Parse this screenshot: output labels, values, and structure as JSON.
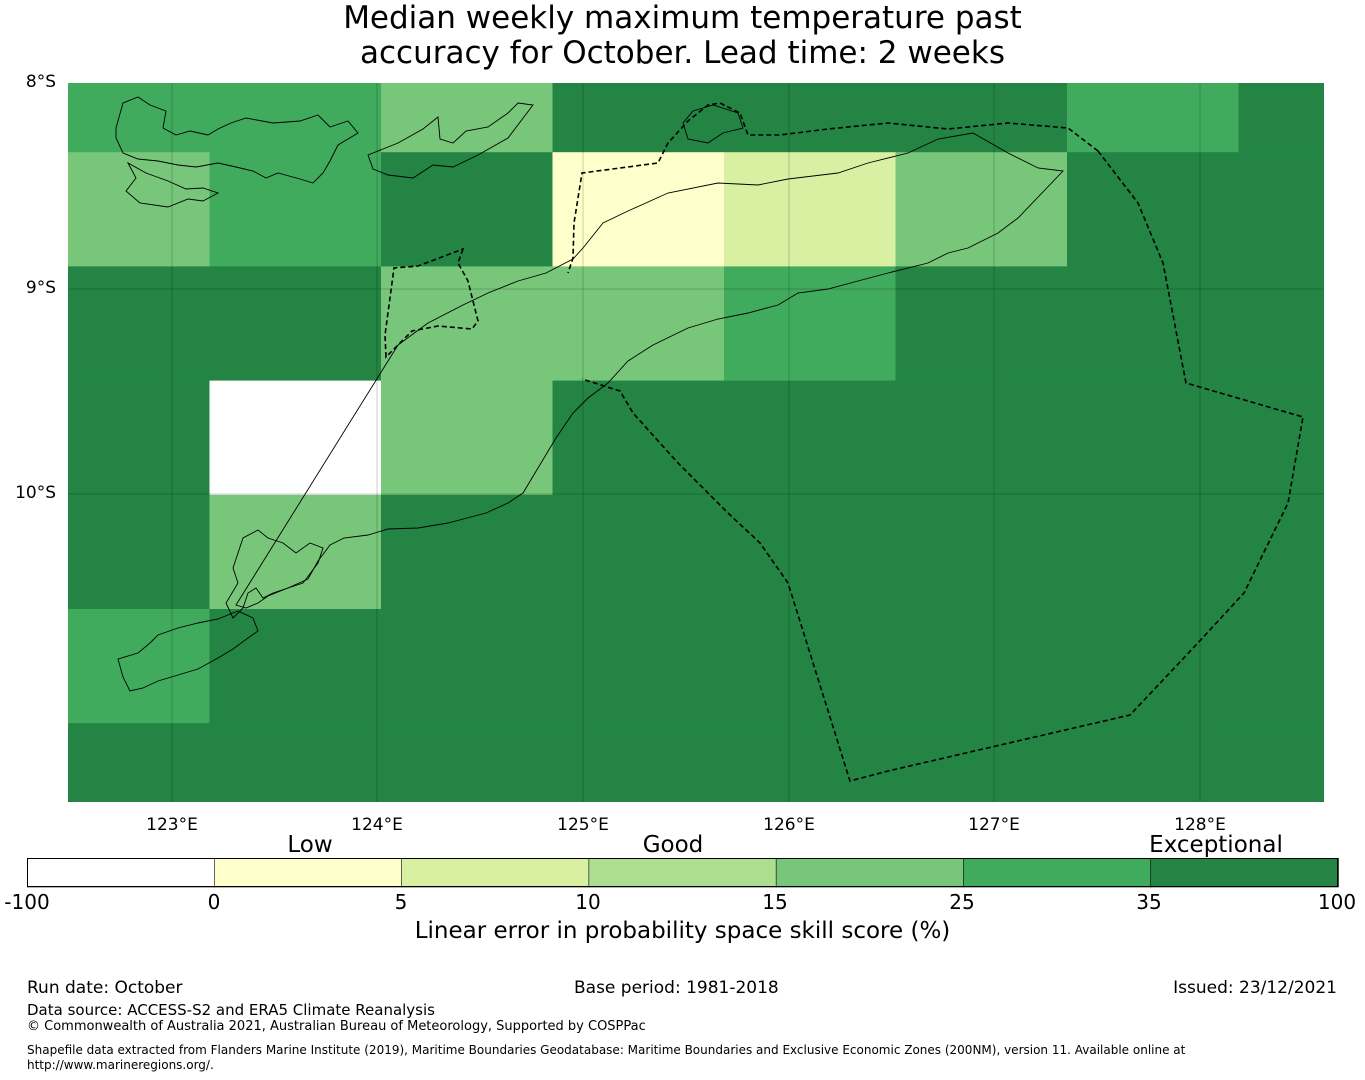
{
  "title": {
    "line1": "Median weekly maximum temperature past",
    "line2": "accuracy for October. Lead time: 2 weeks"
  },
  "map": {
    "lon_range": [
      122.5,
      128.6
    ],
    "lat_range": [
      -8.0,
      -11.5
    ],
    "lat_labels": [
      "8°S",
      "9°S",
      "10°S"
    ],
    "lon_labels": [
      "123°E",
      "124°E",
      "125°E",
      "126°E",
      "127°E",
      "128°E"
    ]
  },
  "colorbar": {
    "categories": [
      "Low",
      "Good",
      "Exceptional"
    ],
    "tick_labels": [
      "-100",
      "0",
      "5",
      "10",
      "15",
      "25",
      "35",
      "100"
    ],
    "colors": [
      "#ffffff",
      "#ffffcc",
      "#d9f0a3",
      "#addd8e",
      "#78c679",
      "#41ab5d",
      "#238443"
    ],
    "label": "Linear error in probability space skill score (%)"
  },
  "chart_data": {
    "type": "heatmap",
    "title": "Median weekly maximum temperature past accuracy for October. Lead time: 2 weeks",
    "colorbar_label": "Linear error in probability space skill score (%)",
    "bins": [
      -100,
      0,
      5,
      10,
      15,
      25,
      35,
      100
    ],
    "value_unit": "colour class index 0-6 (bin between consecutive edges)",
    "grid_rows": [
      [
        5,
        5,
        4,
        6,
        6,
        6,
        5,
        6
      ],
      [
        4,
        5,
        6,
        1,
        2,
        4,
        6,
        6
      ],
      [
        6,
        6,
        4,
        4,
        5,
        6,
        6,
        6
      ],
      [
        6,
        0,
        4,
        6,
        6,
        6,
        6,
        6
      ],
      [
        6,
        4,
        6,
        6,
        6,
        6,
        6,
        6
      ],
      [
        5,
        6,
        6,
        6,
        6,
        6,
        6,
        6
      ],
      [
        6,
        6,
        6,
        6,
        6,
        6,
        6,
        6
      ]
    ]
  },
  "footer": {
    "run_date": "Run date: October",
    "base_period": "Base period: 1981-2018",
    "issued": "Issued: 23/12/2021",
    "data_source": "Data source: ACCESS-S2 and ERA5 Climate Reanalysis",
    "copyright": "© Commonwealth of Australia 2021, Australian Bureau of Meteorology, Supported by COSPPac",
    "shapefile_line1": "Shapefile data extracted from Flanders Marine Institute (2019), Maritime Boundaries Geodatabase: Maritime Boundaries and Exclusive Economic Zones (200NM), version 11. Available online at",
    "shapefile_line2": "http://www.marineregions.org/."
  }
}
